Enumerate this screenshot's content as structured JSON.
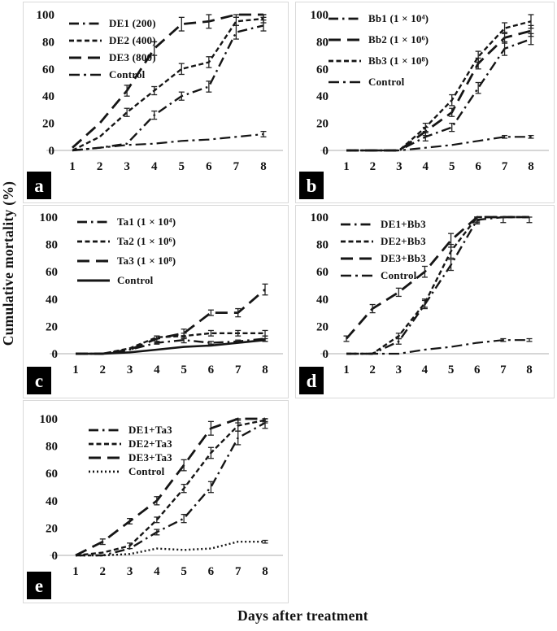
{
  "figure": {
    "y_axis_label": "Cumulative mortality (%)",
    "x_axis_label": "Days after treatment"
  },
  "chart_data": [
    {
      "panel": "a",
      "type": "line",
      "x": [
        1,
        2,
        3,
        4,
        5,
        6,
        7,
        8
      ],
      "ylim": [
        0,
        100
      ],
      "yticks": [
        0,
        20,
        40,
        60,
        80,
        100
      ],
      "legend_position": "top-left-inside",
      "series": [
        {
          "name": "DE1 (200)",
          "dash": "dashdot",
          "values": [
            0,
            2,
            5,
            26,
            40,
            47,
            87,
            92
          ],
          "err": [
            0,
            0,
            0,
            3,
            3,
            4,
            5,
            4
          ]
        },
        {
          "name": "DE2 (400)",
          "dash": "dense-dash",
          "values": [
            0,
            10,
            28,
            44,
            60,
            65,
            95,
            97
          ],
          "err": [
            0,
            0,
            3,
            3,
            4,
            4,
            3,
            3
          ]
        },
        {
          "name": "DE3 (800)",
          "dash": "long-dash",
          "values": [
            2,
            20,
            44,
            75,
            93,
            95,
            100,
            100
          ],
          "err": [
            0,
            0,
            4,
            5,
            5,
            5,
            2,
            2
          ]
        },
        {
          "name": "Control",
          "dash": "dashdot-long",
          "values": [
            0,
            2,
            4,
            5,
            7,
            8,
            10,
            12
          ],
          "err": [
            0,
            0,
            0,
            0,
            0,
            0,
            0,
            2
          ]
        }
      ]
    },
    {
      "panel": "b",
      "type": "line",
      "x": [
        1,
        2,
        3,
        4,
        5,
        6,
        7,
        8
      ],
      "ylim": [
        0,
        100
      ],
      "yticks": [
        0,
        20,
        40,
        60,
        80,
        100
      ],
      "legend_position": "top-left-inside",
      "series": [
        {
          "name": "Bb1 (1 × 10⁴)",
          "dash": "dashdot",
          "values": [
            0,
            0,
            0,
            10,
            17,
            46,
            75,
            82
          ],
          "err": [
            0,
            0,
            0,
            3,
            3,
            4,
            5,
            4
          ]
        },
        {
          "name": "Bb2 (1 × 10⁶)",
          "dash": "long-dash",
          "values": [
            0,
            0,
            0,
            14,
            28,
            64,
            83,
            88
          ],
          "err": [
            0,
            0,
            0,
            3,
            3,
            4,
            4,
            4
          ]
        },
        {
          "name": "Bb3 (1 × 10⁸)",
          "dash": "dense-dash",
          "values": [
            0,
            0,
            0,
            17,
            37,
            69,
            90,
            95
          ],
          "err": [
            0,
            0,
            0,
            3,
            4,
            4,
            4,
            5
          ]
        },
        {
          "name": "Control",
          "dash": "dashdot-long",
          "values": [
            0,
            0,
            0,
            2,
            4,
            7,
            10,
            10
          ],
          "err": [
            0,
            0,
            0,
            0,
            0,
            0,
            1,
            1
          ]
        }
      ]
    },
    {
      "panel": "c",
      "type": "line",
      "x": [
        1,
        2,
        3,
        4,
        5,
        6,
        7,
        8
      ],
      "ylim": [
        0,
        100
      ],
      "yticks": [
        0,
        20,
        40,
        60,
        80,
        100
      ],
      "legend_position": "top-left-inside",
      "series": [
        {
          "name": "Ta1 (1 × 10⁴)",
          "dash": "dashdot",
          "values": [
            0,
            0,
            3,
            8,
            10,
            8,
            9,
            11
          ],
          "err": [
            0,
            0,
            0,
            1,
            2,
            1,
            1,
            2
          ]
        },
        {
          "name": "Ta2 (1 × 10⁶)",
          "dash": "dense-dash",
          "values": [
            0,
            0,
            4,
            12,
            13,
            15,
            15,
            15
          ],
          "err": [
            0,
            0,
            0,
            1,
            2,
            2,
            2,
            2
          ]
        },
        {
          "name": "Ta3 (1 × 10⁸)",
          "dash": "long-dash",
          "values": [
            0,
            0,
            3,
            11,
            15,
            30,
            30,
            47
          ],
          "err": [
            0,
            0,
            0,
            2,
            3,
            2,
            3,
            4
          ]
        },
        {
          "name": "Control",
          "dash": "solid",
          "values": [
            0,
            0,
            1,
            3,
            5,
            6,
            8,
            10
          ],
          "err": [
            0,
            0,
            0,
            0,
            0,
            0,
            0,
            1
          ]
        }
      ]
    },
    {
      "panel": "d",
      "type": "line",
      "x": [
        1,
        2,
        3,
        4,
        5,
        6,
        7,
        8
      ],
      "ylim": [
        0,
        100
      ],
      "yticks": [
        0,
        20,
        40,
        60,
        80,
        100
      ],
      "legend_position": "top-left-inside",
      "series": [
        {
          "name": "DE1+Bb3",
          "dash": "dashdot",
          "values": [
            0,
            0,
            9,
            36,
            65,
            98,
            100,
            100
          ],
          "err": [
            0,
            0,
            2,
            3,
            4,
            3,
            0,
            0
          ]
        },
        {
          "name": "DE2+Bb3",
          "dash": "dense-dash",
          "values": [
            0,
            0,
            13,
            37,
            75,
            100,
            100,
            100
          ],
          "err": [
            0,
            0,
            2,
            3,
            5,
            3,
            0,
            0
          ]
        },
        {
          "name": "DE3+Bb3",
          "dash": "long-dash",
          "values": [
            11,
            33,
            45,
            60,
            83,
            100,
            100,
            100
          ],
          "err": [
            2,
            3,
            3,
            4,
            5,
            4,
            4,
            4
          ]
        },
        {
          "name": "Control",
          "dash": "dashdot-long",
          "values": [
            0,
            0,
            0,
            3,
            5,
            8,
            10,
            10
          ],
          "err": [
            0,
            0,
            0,
            0,
            0,
            0,
            1,
            1
          ]
        }
      ]
    },
    {
      "panel": "e",
      "type": "line",
      "x": [
        1,
        2,
        3,
        4,
        5,
        6,
        7,
        8
      ],
      "ylim": [
        0,
        100
      ],
      "yticks": [
        0,
        20,
        40,
        60,
        80,
        100
      ],
      "legend_position": "top-left-inside",
      "series": [
        {
          "name": "DE1+Ta3",
          "dash": "dashdot",
          "values": [
            0,
            0,
            5,
            17,
            27,
            50,
            86,
            97
          ],
          "err": [
            0,
            0,
            0,
            2,
            3,
            4,
            5,
            4
          ]
        },
        {
          "name": "DE2+Ta3",
          "dash": "dense-dash",
          "values": [
            0,
            2,
            7,
            26,
            49,
            75,
            95,
            99
          ],
          "err": [
            0,
            0,
            2,
            2,
            3,
            4,
            4,
            2
          ]
        },
        {
          "name": "DE3+Ta3",
          "dash": "long-dash",
          "values": [
            0,
            10,
            25,
            40,
            66,
            93,
            100,
            100
          ],
          "err": [
            0,
            2,
            2,
            3,
            4,
            5,
            3,
            2
          ]
        },
        {
          "name": "Control",
          "dash": "dotted",
          "values": [
            0,
            0,
            1,
            5,
            4,
            5,
            10,
            10
          ],
          "err": [
            0,
            0,
            0,
            0,
            0,
            0,
            0,
            1
          ]
        }
      ]
    }
  ]
}
